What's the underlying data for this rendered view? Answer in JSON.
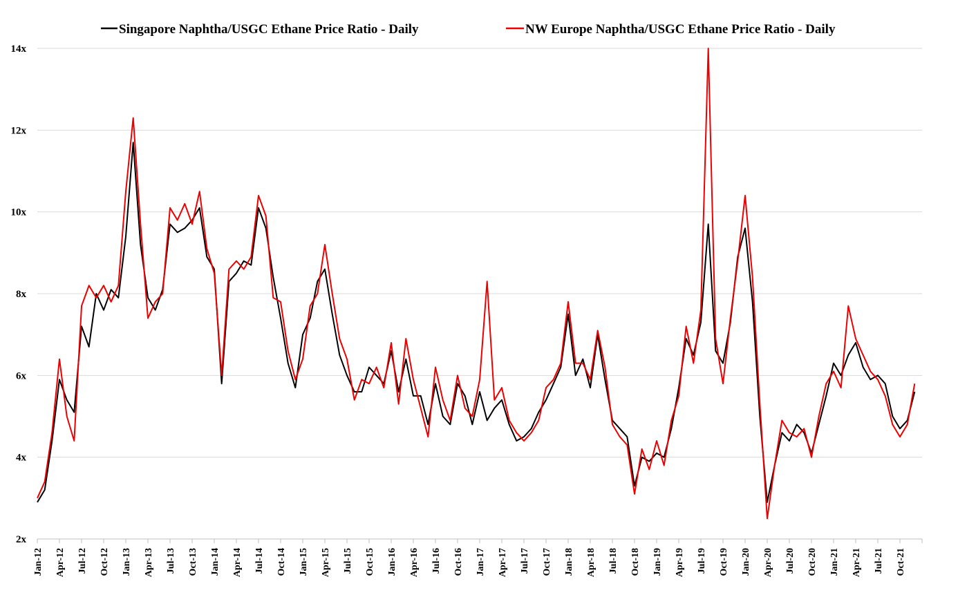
{
  "chart_data": {
    "type": "line",
    "title": "",
    "xlabel": "",
    "ylabel": "",
    "ylim": [
      2,
      14
    ],
    "xlim": [
      "2012-01",
      "2022-01"
    ],
    "y_ticks": [
      "2x",
      "4x",
      "6x",
      "8x",
      "10x",
      "12x",
      "14x"
    ],
    "x_ticks": [
      "Jan-12",
      "Apr-12",
      "Jul-12",
      "Oct-12",
      "Jan-13",
      "Apr-13",
      "Jul-13",
      "Oct-13",
      "Jan-14",
      "Apr-14",
      "Jul-14",
      "Oct-14",
      "Jan-15",
      "Apr-15",
      "Jul-15",
      "Oct-15",
      "Jan-16",
      "Apr-16",
      "Jul-16",
      "Oct-16",
      "Jan-17",
      "Apr-17",
      "Jul-17",
      "Oct-17",
      "Jan-18",
      "Apr-18",
      "Jul-18",
      "Oct-18",
      "Jan-19",
      "Apr-19",
      "Jul-19",
      "Oct-19",
      "Jan-20",
      "Apr-20",
      "Jul-20",
      "Oct-20",
      "Jan-21",
      "Apr-21",
      "Jul-21",
      "Oct-21"
    ],
    "grid": "horizontal",
    "legend_position": "top",
    "colors": {
      "black_series": "#000000",
      "red_series": "#ee0000",
      "grid": "#d9d9d9",
      "axis": "#bfbfbf"
    },
    "series": [
      {
        "name": "Singapore Naphtha/USGC Ethane Price Ratio - Daily",
        "color": "#000000",
        "x": [
          "2012-01",
          "2012-02",
          "2012-03",
          "2012-04",
          "2012-05",
          "2012-06",
          "2012-07",
          "2012-08",
          "2012-09",
          "2012-10",
          "2012-11",
          "2012-12",
          "2013-01",
          "2013-02",
          "2013-03",
          "2013-04",
          "2013-05",
          "2013-06",
          "2013-07",
          "2013-08",
          "2013-09",
          "2013-10",
          "2013-11",
          "2013-12",
          "2014-01",
          "2014-02",
          "2014-03",
          "2014-04",
          "2014-05",
          "2014-06",
          "2014-07",
          "2014-08",
          "2014-09",
          "2014-10",
          "2014-11",
          "2014-12",
          "2015-01",
          "2015-02",
          "2015-03",
          "2015-04",
          "2015-05",
          "2015-06",
          "2015-07",
          "2015-08",
          "2015-09",
          "2015-10",
          "2015-11",
          "2015-12",
          "2016-01",
          "2016-02",
          "2016-03",
          "2016-04",
          "2016-05",
          "2016-06",
          "2016-07",
          "2016-08",
          "2016-09",
          "2016-10",
          "2016-11",
          "2016-12",
          "2017-01",
          "2017-02",
          "2017-03",
          "2017-04",
          "2017-05",
          "2017-06",
          "2017-07",
          "2017-08",
          "2017-09",
          "2017-10",
          "2017-11",
          "2017-12",
          "2018-01",
          "2018-02",
          "2018-03",
          "2018-04",
          "2018-05",
          "2018-06",
          "2018-07",
          "2018-08",
          "2018-09",
          "2018-10",
          "2018-11",
          "2018-12",
          "2019-01",
          "2019-02",
          "2019-03",
          "2019-04",
          "2019-05",
          "2019-06",
          "2019-07",
          "2019-08",
          "2019-09",
          "2019-10",
          "2019-11",
          "2019-12",
          "2020-01",
          "2020-02",
          "2020-03",
          "2020-04",
          "2020-05",
          "2020-06",
          "2020-07",
          "2020-08",
          "2020-09",
          "2020-10",
          "2020-11",
          "2020-12",
          "2021-01",
          "2021-02",
          "2021-03",
          "2021-04",
          "2021-05",
          "2021-06",
          "2021-07",
          "2021-08",
          "2021-09",
          "2021-10",
          "2021-11",
          "2021-12"
        ],
        "values": [
          2.9,
          3.2,
          4.4,
          5.9,
          5.4,
          5.1,
          7.2,
          6.7,
          8.0,
          7.6,
          8.1,
          7.9,
          9.4,
          11.7,
          9.2,
          7.9,
          7.6,
          8.1,
          9.7,
          9.5,
          9.6,
          9.8,
          10.1,
          8.9,
          8.6,
          5.8,
          8.3,
          8.5,
          8.8,
          8.7,
          10.1,
          9.6,
          8.4,
          7.4,
          6.3,
          5.7,
          7.0,
          7.4,
          8.3,
          8.6,
          7.5,
          6.5,
          6.0,
          5.6,
          5.6,
          6.2,
          6.0,
          5.8,
          6.6,
          5.6,
          6.4,
          5.5,
          5.5,
          4.8,
          5.8,
          5.0,
          4.8,
          5.8,
          5.5,
          4.8,
          5.6,
          4.9,
          5.2,
          5.4,
          4.8,
          4.4,
          4.5,
          4.7,
          5.1,
          5.4,
          5.8,
          6.2,
          7.5,
          6.0,
          6.4,
          5.7,
          7.0,
          5.9,
          4.9,
          4.7,
          4.5,
          3.3,
          4.0,
          3.9,
          4.1,
          4.0,
          4.7,
          5.7,
          6.9,
          6.5,
          7.3,
          9.7,
          6.6,
          6.3,
          7.3,
          8.9,
          9.6,
          7.8,
          5.0,
          2.9,
          3.8,
          4.6,
          4.4,
          4.8,
          4.6,
          4.1,
          4.8,
          5.5,
          6.3,
          6.0,
          6.5,
          6.8,
          6.2,
          5.9,
          6.0,
          5.8,
          5.0,
          4.7,
          4.9,
          5.6
        ]
      },
      {
        "name": "NW Europe Naphtha/USGC Ethane Price Ratio - Daily",
        "color": "#ee0000",
        "x": [
          "2012-01",
          "2012-02",
          "2012-03",
          "2012-04",
          "2012-05",
          "2012-06",
          "2012-07",
          "2012-08",
          "2012-09",
          "2012-10",
          "2012-11",
          "2012-12",
          "2013-01",
          "2013-02",
          "2013-03",
          "2013-04",
          "2013-05",
          "2013-06",
          "2013-07",
          "2013-08",
          "2013-09",
          "2013-10",
          "2013-11",
          "2013-12",
          "2014-01",
          "2014-02",
          "2014-03",
          "2014-04",
          "2014-05",
          "2014-06",
          "2014-07",
          "2014-08",
          "2014-09",
          "2014-10",
          "2014-11",
          "2014-12",
          "2015-01",
          "2015-02",
          "2015-03",
          "2015-04",
          "2015-05",
          "2015-06",
          "2015-07",
          "2015-08",
          "2015-09",
          "2015-10",
          "2015-11",
          "2015-12",
          "2016-01",
          "2016-02",
          "2016-03",
          "2016-04",
          "2016-05",
          "2016-06",
          "2016-07",
          "2016-08",
          "2016-09",
          "2016-10",
          "2016-11",
          "2016-12",
          "2017-01",
          "2017-02",
          "2017-03",
          "2017-04",
          "2017-05",
          "2017-06",
          "2017-07",
          "2017-08",
          "2017-09",
          "2017-10",
          "2017-11",
          "2017-12",
          "2018-01",
          "2018-02",
          "2018-03",
          "2018-04",
          "2018-05",
          "2018-06",
          "2018-07",
          "2018-08",
          "2018-09",
          "2018-10",
          "2018-11",
          "2018-12",
          "2019-01",
          "2019-02",
          "2019-03",
          "2019-04",
          "2019-05",
          "2019-06",
          "2019-07",
          "2019-08",
          "2019-09",
          "2019-10",
          "2019-11",
          "2019-12",
          "2020-01",
          "2020-02",
          "2020-03",
          "2020-04",
          "2020-05",
          "2020-06",
          "2020-07",
          "2020-08",
          "2020-09",
          "2020-10",
          "2020-11",
          "2020-12",
          "2021-01",
          "2021-02",
          "2021-03",
          "2021-04",
          "2021-05",
          "2021-06",
          "2021-07",
          "2021-08",
          "2021-09",
          "2021-10",
          "2021-11",
          "2021-12"
        ],
        "values": [
          3.0,
          3.4,
          4.6,
          6.4,
          5.0,
          4.4,
          7.7,
          8.2,
          7.9,
          8.2,
          7.8,
          8.2,
          10.5,
          12.3,
          9.7,
          7.4,
          7.8,
          8.0,
          10.1,
          9.8,
          10.2,
          9.7,
          10.5,
          9.1,
          8.5,
          6.0,
          8.6,
          8.8,
          8.6,
          8.9,
          10.4,
          9.9,
          7.9,
          7.8,
          6.6,
          5.9,
          6.4,
          7.7,
          8.0,
          9.2,
          8.0,
          6.9,
          6.4,
          5.4,
          5.9,
          5.8,
          6.2,
          5.7,
          6.8,
          5.3,
          6.9,
          5.9,
          5.2,
          4.5,
          6.2,
          5.4,
          4.9,
          6.0,
          5.2,
          5.0,
          5.9,
          8.3,
          5.4,
          5.7,
          4.9,
          4.6,
          4.4,
          4.6,
          4.9,
          5.7,
          5.9,
          6.3,
          7.8,
          6.3,
          6.3,
          5.9,
          7.1,
          6.2,
          4.8,
          4.5,
          4.3,
          3.1,
          4.2,
          3.7,
          4.4,
          3.8,
          4.9,
          5.5,
          7.2,
          6.3,
          7.6,
          14.0,
          6.9,
          5.8,
          7.4,
          8.8,
          10.4,
          8.4,
          5.3,
          2.5,
          3.8,
          4.9,
          4.6,
          4.5,
          4.7,
          4.0,
          5.0,
          5.8,
          6.1,
          5.7,
          7.7,
          6.9,
          6.5,
          6.1,
          5.9,
          5.5,
          4.8,
          4.5,
          4.8,
          5.8
        ]
      }
    ]
  }
}
